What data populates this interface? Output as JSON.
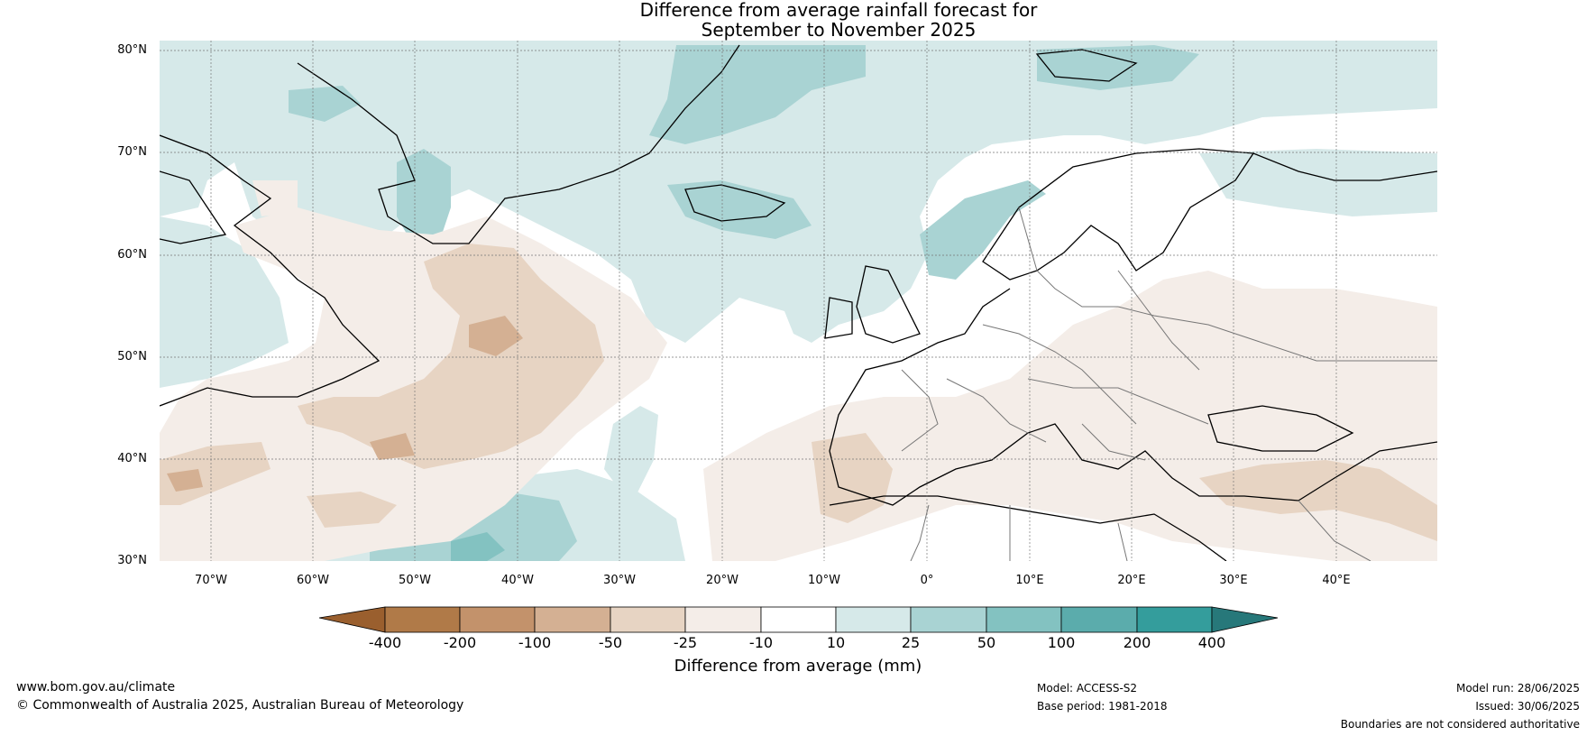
{
  "title": {
    "line1": "Difference from average rainfall forecast for",
    "line2": "September to November 2025"
  },
  "map": {
    "latitude_labels": [
      "80°N",
      "70°N",
      "60°N",
      "50°N",
      "40°N",
      "30°N"
    ],
    "longitude_labels": [
      "70°W",
      "60°W",
      "50°W",
      "40°W",
      "30°W",
      "20°W",
      "10°W",
      "0°",
      "10°E",
      "20°E",
      "30°E",
      "40°E"
    ],
    "lon_range": [
      -75,
      50
    ],
    "lat_range": [
      30,
      81
    ]
  },
  "colorbar": {
    "title": "Difference from average (mm)",
    "tick_labels": [
      "-400",
      "-200",
      "-100",
      "-50",
      "-25",
      "-10",
      "10",
      "25",
      "50",
      "100",
      "200",
      "400"
    ],
    "colors": [
      "#9a5f2e",
      "#b07a48",
      "#c3926b",
      "#d4b093",
      "#e7d4c3",
      "#f4ede8",
      "#ffffff",
      "#d6e9e9",
      "#a9d3d3",
      "#83c2c1",
      "#5bacac",
      "#349d9c",
      "#27787a"
    ]
  },
  "footer": {
    "url": "www.bom.gov.au/climate",
    "copyright": "© Commonwealth of Australia 2025, Australian Bureau of Meteorology",
    "model": "Model: ACCESS-S2",
    "base_period": "Base period: 1981-2018",
    "model_run": "Model run: 28/06/2025",
    "issued": "Issued: 30/06/2025",
    "disclaimer": "Boundaries are not considered authoritative"
  }
}
